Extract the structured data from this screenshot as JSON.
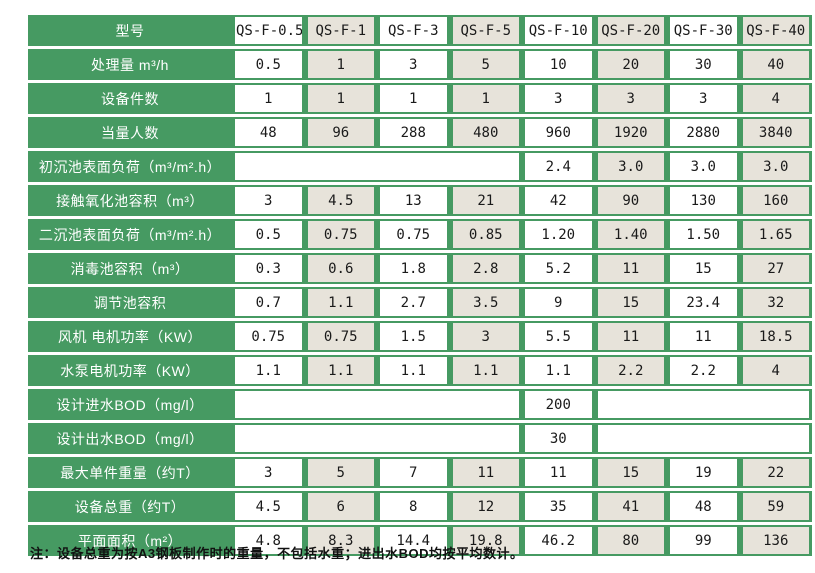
{
  "colors": {
    "green": "#469a62",
    "beige": "#e7e3da",
    "cell_white": "#ffffff",
    "text_dark": "#1a1a1a"
  },
  "table": {
    "corner_label": "型号",
    "models": [
      "QS-F-0.5",
      "QS-F-1",
      "QS-F-3",
      "QS-F-5",
      "QS-F-10",
      "QS-F-20",
      "QS-F-30",
      "QS-F-40"
    ],
    "rows": [
      {
        "label": "处理量 m³/h",
        "cells": [
          {
            "text": "0.5"
          },
          {
            "text": "1"
          },
          {
            "text": "3"
          },
          {
            "text": "5"
          },
          {
            "text": "10"
          },
          {
            "text": "20"
          },
          {
            "text": "30"
          },
          {
            "text": "40"
          }
        ]
      },
      {
        "label": "设备件数",
        "cells": [
          {
            "text": "1"
          },
          {
            "text": "1"
          },
          {
            "text": "1"
          },
          {
            "text": "1"
          },
          {
            "text": "3"
          },
          {
            "text": "3"
          },
          {
            "text": "3"
          },
          {
            "text": "4"
          }
        ]
      },
      {
        "label": "当量人数",
        "cells": [
          {
            "text": "48"
          },
          {
            "text": "96"
          },
          {
            "text": "288"
          },
          {
            "text": "480"
          },
          {
            "text": "960"
          },
          {
            "text": "1920"
          },
          {
            "text": "2880"
          },
          {
            "text": "3840"
          }
        ]
      },
      {
        "label": "初沉池表面负荷（m³/m².h）",
        "cells": [
          {
            "text": "",
            "span": 4
          },
          {
            "text": "2.4"
          },
          {
            "text": "3.0"
          },
          {
            "text": "3.0"
          },
          {
            "text": "3.0"
          }
        ]
      },
      {
        "label": "接触氧化池容积（m³）",
        "cells": [
          {
            "text": "3"
          },
          {
            "text": "4.5"
          },
          {
            "text": "13"
          },
          {
            "text": "21"
          },
          {
            "text": "42"
          },
          {
            "text": "90"
          },
          {
            "text": "130"
          },
          {
            "text": "160"
          }
        ]
      },
      {
        "label": "二沉池表面负荷（m³/m².h）",
        "cells": [
          {
            "text": "0.5"
          },
          {
            "text": "0.75"
          },
          {
            "text": "0.75"
          },
          {
            "text": "0.85"
          },
          {
            "text": "1.20"
          },
          {
            "text": "1.40"
          },
          {
            "text": "1.50"
          },
          {
            "text": "1.65"
          }
        ]
      },
      {
        "label": "消毒池容积（m³）",
        "cells": [
          {
            "text": "0.3"
          },
          {
            "text": "0.6"
          },
          {
            "text": "1.8"
          },
          {
            "text": "2.8"
          },
          {
            "text": "5.2"
          },
          {
            "text": "11"
          },
          {
            "text": "15"
          },
          {
            "text": "27"
          }
        ]
      },
      {
        "label": "调节池容积",
        "cells": [
          {
            "text": "0.7"
          },
          {
            "text": "1.1"
          },
          {
            "text": "2.7"
          },
          {
            "text": "3.5"
          },
          {
            "text": "9"
          },
          {
            "text": "15"
          },
          {
            "text": "23.4"
          },
          {
            "text": "32"
          }
        ]
      },
      {
        "label": "风机 电机功率（KW）",
        "cells": [
          {
            "text": "0.75"
          },
          {
            "text": "0.75"
          },
          {
            "text": "1.5"
          },
          {
            "text": "3"
          },
          {
            "text": "5.5"
          },
          {
            "text": "11"
          },
          {
            "text": "11"
          },
          {
            "text": "18.5"
          }
        ]
      },
      {
        "label": "水泵电机功率（KW）",
        "cells": [
          {
            "text": "1.1"
          },
          {
            "text": "1.1"
          },
          {
            "text": "1.1"
          },
          {
            "text": "1.1"
          },
          {
            "text": "1.1"
          },
          {
            "text": "2.2"
          },
          {
            "text": "2.2"
          },
          {
            "text": "4"
          }
        ]
      },
      {
        "label": "设计进水BOD（mg/l）",
        "cells": [
          {
            "text": "",
            "span": 4
          },
          {
            "text": "200"
          },
          {
            "text": "",
            "span": 3
          }
        ]
      },
      {
        "label": "设计出水BOD（mg/l）",
        "cells": [
          {
            "text": "",
            "span": 4
          },
          {
            "text": "30"
          },
          {
            "text": "",
            "span": 3
          }
        ]
      },
      {
        "label": "最大单件重量（约T）",
        "cells": [
          {
            "text": "3"
          },
          {
            "text": "5"
          },
          {
            "text": "7"
          },
          {
            "text": "11"
          },
          {
            "text": "11"
          },
          {
            "text": "15"
          },
          {
            "text": "19"
          },
          {
            "text": "22"
          }
        ]
      },
      {
        "label": "设备总重（约T）",
        "cells": [
          {
            "text": "4.5"
          },
          {
            "text": "6"
          },
          {
            "text": "8"
          },
          {
            "text": "12"
          },
          {
            "text": "35"
          },
          {
            "text": "41"
          },
          {
            "text": "48"
          },
          {
            "text": "59"
          }
        ]
      },
      {
        "label": "平面面积（m²）",
        "cells": [
          {
            "text": "4.8"
          },
          {
            "text": "8.3"
          },
          {
            "text": "14.4"
          },
          {
            "text": "19.8"
          },
          {
            "text": "46.2"
          },
          {
            "text": "80"
          },
          {
            "text": "99"
          },
          {
            "text": "136"
          }
        ]
      }
    ]
  },
  "note": "注：设备总重为按A3钢板制作时的重量，不包括水重；进出水BOD均按平均数计。"
}
